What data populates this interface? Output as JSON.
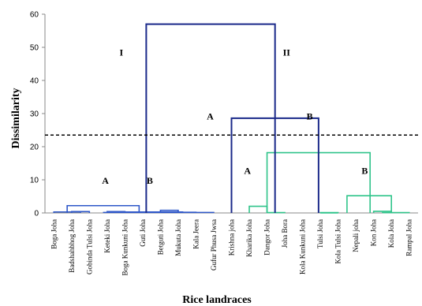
{
  "chart_data": {
    "type": "dendrogram",
    "xlabel": "Rice landraces",
    "ylabel": "Dissimilarity",
    "ylim": [
      0,
      60
    ],
    "yticks": [
      "0",
      "10",
      "20",
      "30",
      "40",
      "50",
      "60"
    ],
    "cutoff_line": 23.5,
    "leaves": [
      "Boga Joha",
      "Badshahbhog Joha",
      "Gobinda Tulsi Joha",
      "Keteki Joha",
      "Boga Kunkuni Joha",
      "Guti Joha",
      "Betguti Joha",
      "Mukuta Joha",
      "Kala Jeera",
      "Gufur Phusa Jwsa",
      "Krishna joha",
      "Kharika Joha",
      "Dangor Joha",
      "Joha Bora",
      "Kola Kunkuni Joha",
      "Tulsi Joha",
      "Kola Tulsi Joha",
      "Nepali joha",
      "Kon Joha",
      "Kola Joha",
      "Rampal Joha"
    ],
    "merges": [
      {
        "left": 1,
        "right": 2,
        "height": 0.4,
        "color": "#2e57c9"
      },
      {
        "left": 3,
        "right": 4,
        "height": 0.4,
        "color": "#2e57c9"
      },
      {
        "left": 0,
        "right": 1.5,
        "height": 0.3,
        "color": "#2e57c9"
      },
      {
        "left": 6,
        "right": 7,
        "height": 0.8,
        "color": "#2e57c9"
      },
      {
        "left": 6.5,
        "right": 8,
        "height": 0.2,
        "color": "#2e57c9"
      },
      {
        "left": 5,
        "right": 7.25,
        "height": 0.3,
        "color": "#2e57c9"
      },
      {
        "left": 3.5,
        "right": 6.1,
        "height": 0.3,
        "color": "#2e57c9"
      },
      {
        "left": 0.75,
        "right": 4.8,
        "height": 2.2,
        "color": "#2e57c9"
      },
      {
        "left": 2.8,
        "right": 9,
        "height": 0.15,
        "color": "#2e57c9"
      },
      {
        "left": 11,
        "right": 12,
        "height": 2.0,
        "color": "#2fc48a"
      },
      {
        "left": 12,
        "right": 13,
        "height": 0.1,
        "color": "#2fc48a"
      },
      {
        "left": 15,
        "right": 16,
        "height": 0.1,
        "color": "#2fc48a"
      },
      {
        "left": 18,
        "right": 19,
        "height": 0.5,
        "color": "#2fc48a"
      },
      {
        "left": 18.5,
        "right": 20,
        "height": 0.1,
        "color": "#2fc48a"
      },
      {
        "left": 16.5,
        "right": 19,
        "height": 5.2,
        "color": "#2fc48a"
      },
      {
        "left": 15,
        "right": 16,
        "height": 0.0,
        "color": "#2fc48a"
      },
      {
        "left": 12,
        "right": 17.8,
        "height": 18.2,
        "color": "#2fc48a"
      },
      {
        "left": 10,
        "right": 14.9,
        "height": 28.6,
        "color": "#1b2a8a"
      },
      {
        "left": 5.2,
        "right": 12.45,
        "height": 57.0,
        "color": "#1b2a8a"
      }
    ],
    "labels": [
      {
        "text": "I",
        "x": 3.8,
        "y": 47.5
      },
      {
        "text": "II",
        "x": 13.1,
        "y": 47.5
      },
      {
        "text": "A",
        "x": 2.9,
        "y": 8.8
      },
      {
        "text": "B",
        "x": 5.4,
        "y": 8.8
      },
      {
        "text": "A",
        "x": 8.8,
        "y": 28.2
      },
      {
        "text": "B",
        "x": 14.4,
        "y": 28.2
      },
      {
        "text": "A",
        "x": 10.9,
        "y": 11.8
      },
      {
        "text": "B",
        "x": 17.5,
        "y": 11.8
      }
    ],
    "colors": {
      "blue": "#2e57c9",
      "green": "#2fc48a",
      "navy": "#1b2a8a",
      "axis": "#888888"
    }
  }
}
